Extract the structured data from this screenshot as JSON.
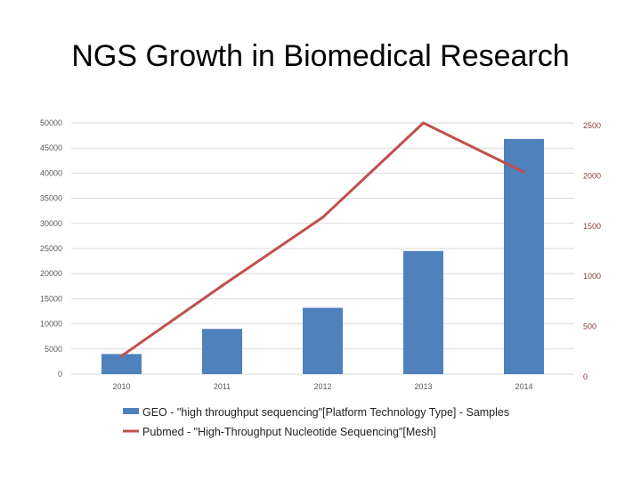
{
  "slide": {
    "title": "NGS Growth in Biomedical Research"
  },
  "chart_data": {
    "type": "bar",
    "categories": [
      "2010",
      "2011",
      "2012",
      "2013",
      "2014"
    ],
    "series": [
      {
        "name": "GEO - \"high throughput sequencing\"[Platform Technology Type] - Samples",
        "type": "bar",
        "axis": "left",
        "color": "#4f81bd",
        "values": [
          4000,
          9000,
          13200,
          24500,
          46800
        ]
      },
      {
        "name": "Pubmed - \"High-Throughput Nucleotide Sequencing\"[Mesh]",
        "type": "line",
        "axis": "right",
        "color": "#c0504d",
        "values": [
          180,
          880,
          1560,
          2500,
          2010
        ]
      }
    ],
    "ylim_left": [
      0,
      50000
    ],
    "yticks_left": [
      "0",
      "5000",
      "10000",
      "15000",
      "20000",
      "25000",
      "30000",
      "35000",
      "40000",
      "45000",
      "50000"
    ],
    "ylim_right": [
      0,
      2500
    ],
    "yticks_right": [
      "0",
      "500",
      "1000",
      "1500",
      "2000",
      "2500"
    ],
    "grid": true,
    "legend_position": "bottom"
  }
}
